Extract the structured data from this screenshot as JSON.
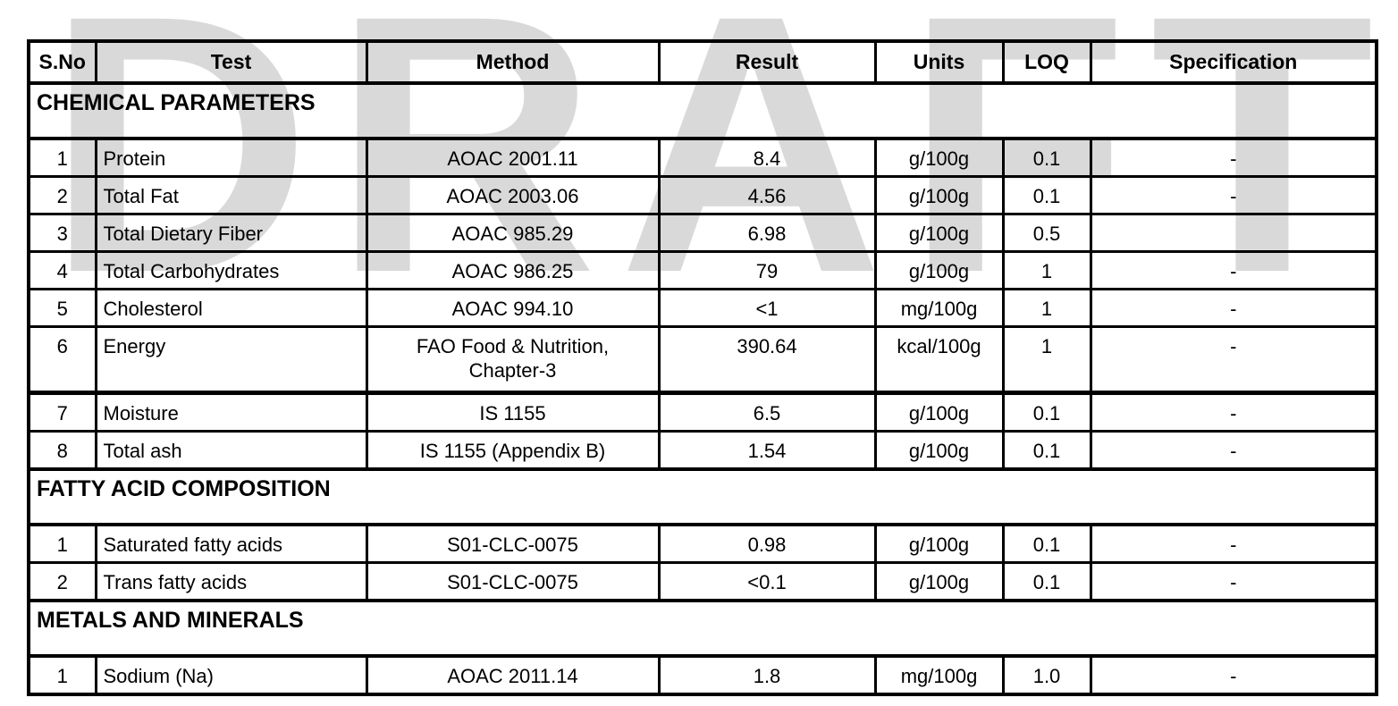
{
  "watermark": {
    "text": "DRAFT",
    "color": "#d9d9d9"
  },
  "table": {
    "columns": [
      "S.No",
      "Test",
      "Method",
      "Result",
      "Units",
      "LOQ",
      "Specification"
    ],
    "sections": [
      {
        "title": "CHEMICAL PARAMETERS",
        "rows": [
          {
            "sno": "1",
            "test": "Protein",
            "method": "AOAC 2001.11",
            "result": "8.4",
            "units": "g/100g",
            "loq": "0.1",
            "spec": "-"
          },
          {
            "sno": "2",
            "test": "Total Fat",
            "method": "AOAC 2003.06",
            "result": "4.56",
            "units": "g/100g",
            "loq": "0.1",
            "spec": "-"
          },
          {
            "sno": "3",
            "test": "Total Dietary Fiber",
            "method": "AOAC 985.29",
            "result": "6.98",
            "units": "g/100g",
            "loq": "0.5",
            "spec": ""
          },
          {
            "sno": "4",
            "test": "Total Carbohydrates",
            "method": "AOAC 986.25",
            "result": "79",
            "units": "g/100g",
            "loq": "1",
            "spec": "-"
          },
          {
            "sno": "5",
            "test": "Cholesterol",
            "method": "AOAC 994.10",
            "result": "<1",
            "units": "mg/100g",
            "loq": "1",
            "spec": "-"
          },
          {
            "sno": "6",
            "test": "Energy",
            "method": "FAO Food & Nutrition,\nChapter-3",
            "result": "390.64",
            "units": "kcal/100g",
            "loq": "1",
            "spec": "-"
          },
          {
            "sno": "7",
            "test": "Moisture",
            "method": "IS 1155",
            "result": "6.5",
            "units": "g/100g",
            "loq": "0.1",
            "spec": "-"
          },
          {
            "sno": "8",
            "test": "Total ash",
            "method": "IS 1155 (Appendix B)",
            "result": "1.54",
            "units": "g/100g",
            "loq": "0.1",
            "spec": "-"
          }
        ]
      },
      {
        "title": "FATTY ACID COMPOSITION",
        "rows": [
          {
            "sno": "1",
            "test": "Saturated fatty acids",
            "method": "S01-CLC-0075",
            "result": "0.98",
            "units": "g/100g",
            "loq": "0.1",
            "spec": "-"
          },
          {
            "sno": "2",
            "test": "Trans fatty acids",
            "method": "S01-CLC-0075",
            "result": "<0.1",
            "units": "g/100g",
            "loq": "0.1",
            "spec": "-"
          }
        ]
      },
      {
        "title": "METALS AND MINERALS",
        "rows": [
          {
            "sno": "1",
            "test": "Sodium (Na)",
            "method": "AOAC 2011.14",
            "result": "1.8",
            "units": "mg/100g",
            "loq": "1.0",
            "spec": "-"
          }
        ]
      }
    ]
  }
}
